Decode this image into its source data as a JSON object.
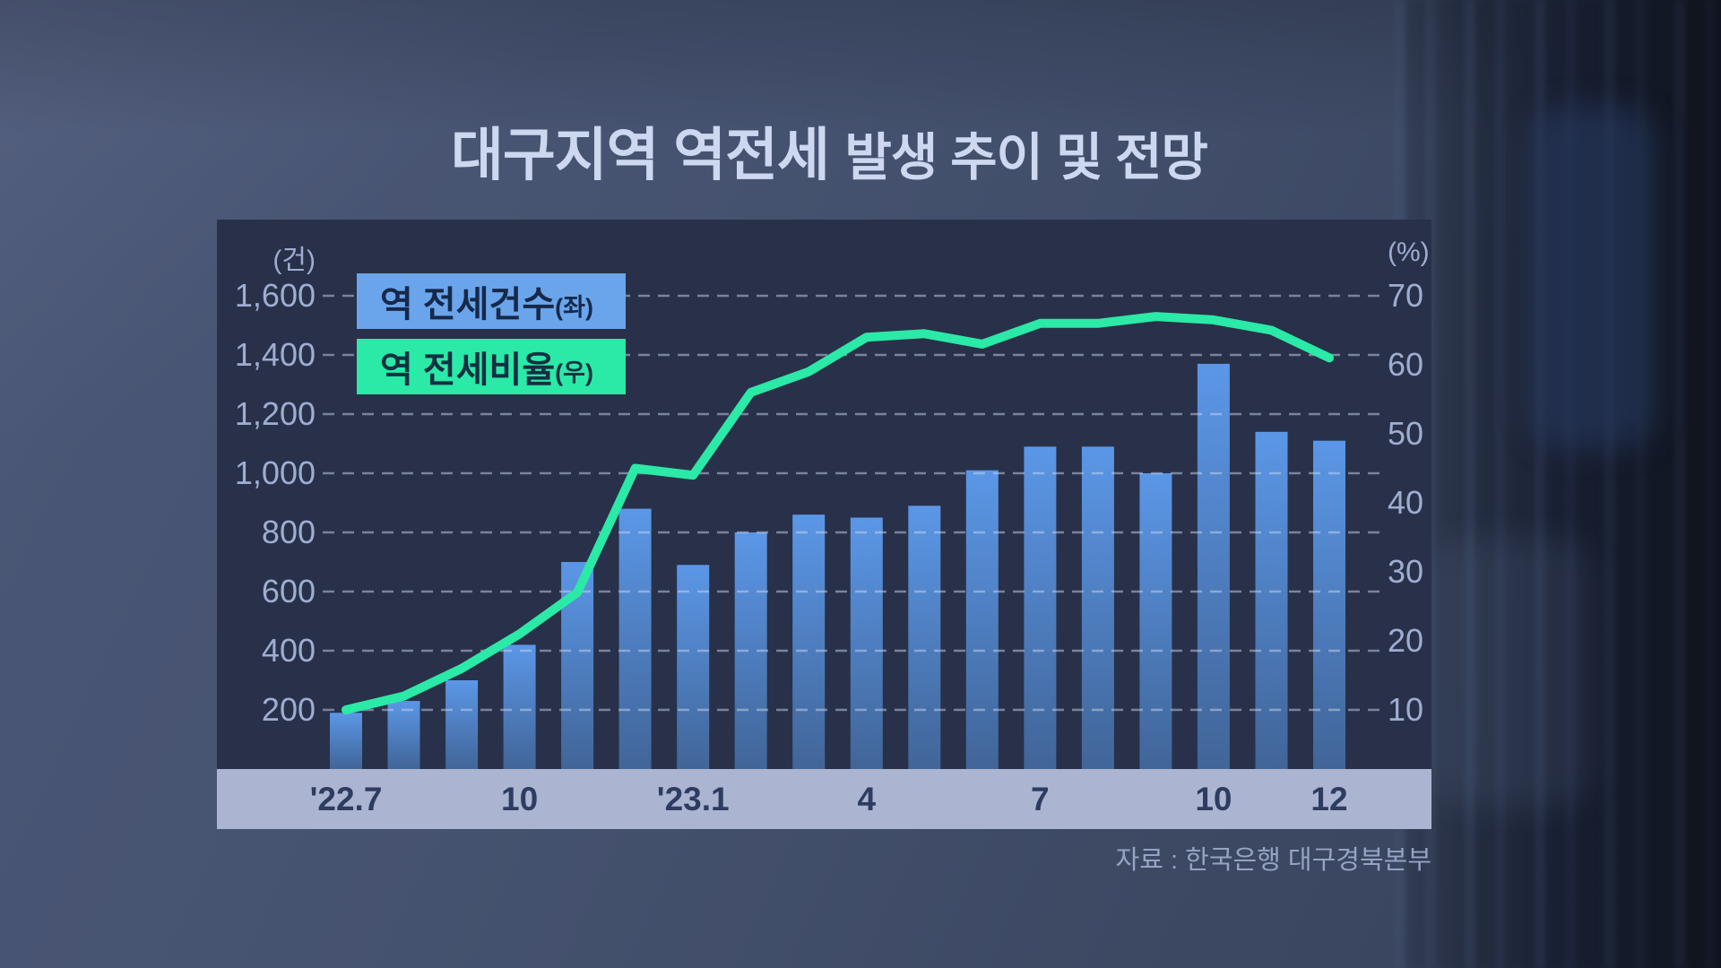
{
  "title": {
    "emphasis": "대구지역 역전세",
    "rest": "발생 추이 및 전망"
  },
  "legend": {
    "bar": {
      "label": "역 전세건수",
      "suffix": "(좌)",
      "box_color": "#6aa5ec"
    },
    "line": {
      "label": "역 전세비율",
      "suffix": "(우)",
      "box_color": "#2be9a6"
    }
  },
  "source": "자료 : 한국은행 대구경북본부",
  "chart_data": {
    "type": "bar",
    "subtype": "bar+line dual-axis combo",
    "title": "대구지역 역전세 발생 추이 및 전망",
    "categories": [
      "'22.7",
      "'22.8",
      "'22.9",
      "'22.10",
      "'22.11",
      "'22.12",
      "'23.1",
      "'23.2",
      "'23.3",
      "'23.4",
      "'23.5",
      "'23.6",
      "'23.7",
      "'23.8",
      "'23.9",
      "'23.10",
      "'23.11",
      "'23.12"
    ],
    "x_tick_labels": [
      {
        "index": 0,
        "label": "'22.7"
      },
      {
        "index": 3,
        "label": "10"
      },
      {
        "index": 6,
        "label": "'23.1"
      },
      {
        "index": 9,
        "label": "4"
      },
      {
        "index": 12,
        "label": "7"
      },
      {
        "index": 15,
        "label": "10"
      },
      {
        "index": 17,
        "label": "12"
      }
    ],
    "series": [
      {
        "name": "역 전세건수(좌)",
        "type": "bar",
        "axis": "left",
        "unit": "건",
        "color_top": "#5b97e7",
        "color_bottom": "#416598",
        "values": [
          190,
          230,
          300,
          420,
          700,
          880,
          690,
          800,
          860,
          850,
          890,
          1010,
          1090,
          1090,
          1000,
          1370,
          1140,
          1110
        ]
      },
      {
        "name": "역 전세비율(우)",
        "type": "line",
        "axis": "right",
        "unit": "%",
        "color": "#2be9a6",
        "values": [
          10,
          12,
          16,
          21,
          27,
          45,
          44,
          56,
          59,
          64,
          64.5,
          63,
          66,
          66,
          67,
          66.5,
          65,
          61
        ]
      }
    ],
    "left_axis": {
      "unit_label": "(건)",
      "ticks": [
        200,
        400,
        600,
        800,
        1000,
        1200,
        1400,
        1600
      ],
      "min": 0,
      "max": 1700
    },
    "right_axis": {
      "unit_label": "(%)",
      "ticks": [
        10,
        20,
        30,
        40,
        50,
        60,
        70
      ],
      "aligned": "10%↔200건, 70%↔1600건"
    },
    "grid": "dashed horizontal, drawn over bars",
    "legend_position": "top-left inside plot",
    "x_axis_band_color": "#abb5d1",
    "plot_background": "#283149"
  }
}
